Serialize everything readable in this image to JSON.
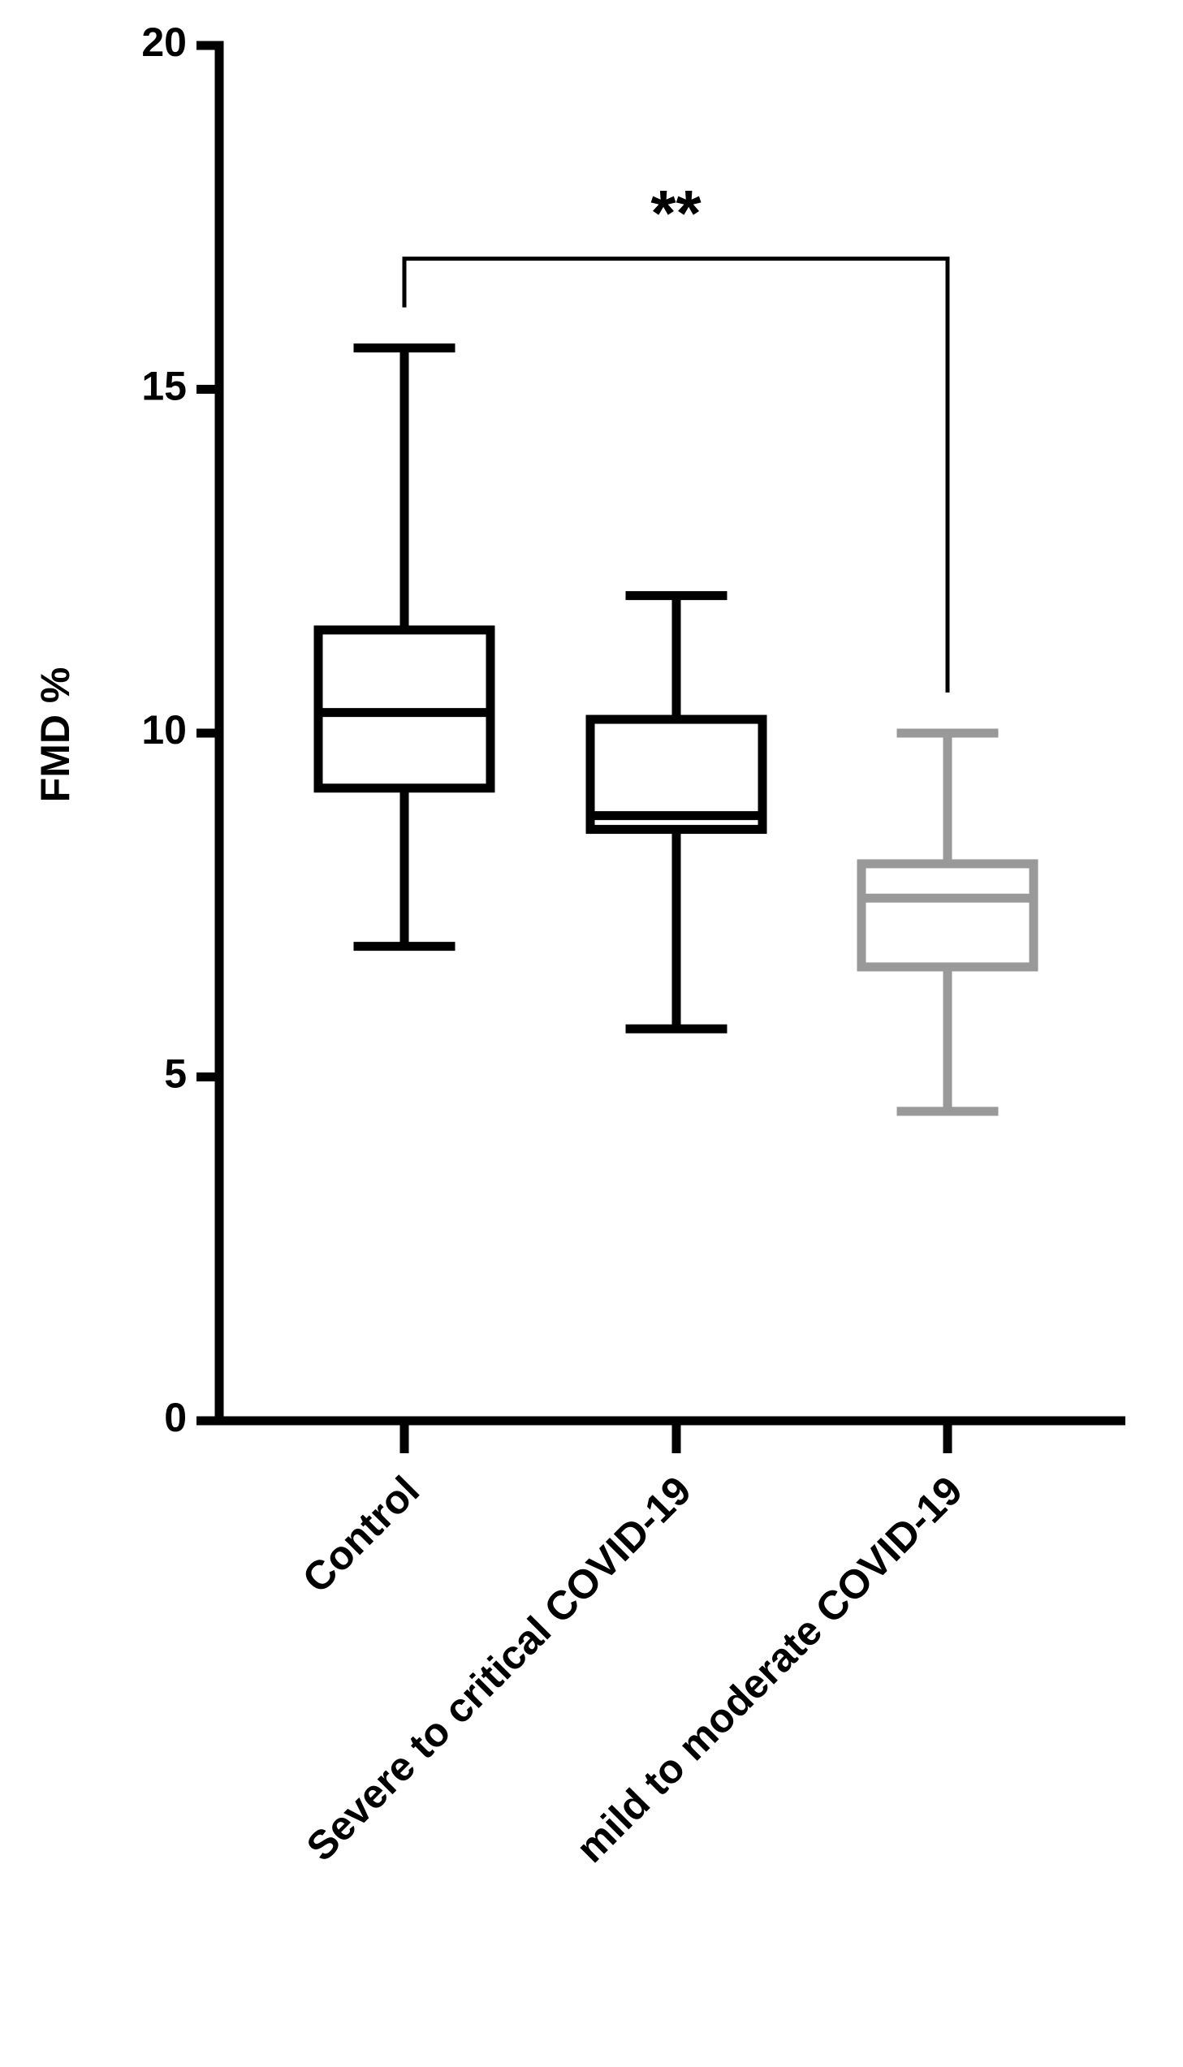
{
  "chart_data": {
    "type": "box",
    "y_label": "FMD %",
    "categories": [
      "Control",
      "Severe to critical COVID-19",
      "mild to moderate COVID-19"
    ],
    "boxes": [
      {
        "min": 6.9,
        "q1": 9.2,
        "median": 10.3,
        "q3": 11.5,
        "max": 15.6,
        "color": "#000000"
      },
      {
        "min": 5.7,
        "q1": 8.6,
        "median": 8.8,
        "q3": 10.2,
        "max": 12.0,
        "color": "#000000"
      },
      {
        "min": 4.5,
        "q1": 6.6,
        "median": 7.6,
        "q3": 8.1,
        "max": 10.0,
        "color": "#999999"
      }
    ],
    "ylim": [
      0,
      20
    ],
    "yticks": [
      0,
      5,
      10,
      15,
      20
    ],
    "annotation": "**"
  }
}
